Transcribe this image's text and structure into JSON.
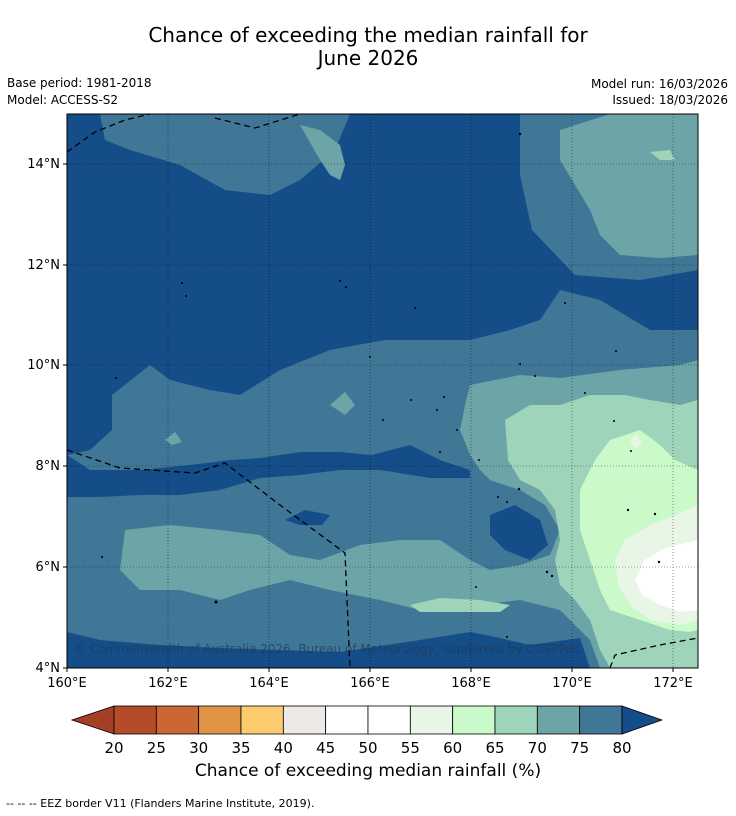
{
  "title_line1": "Chance of exceeding the median rainfall for",
  "title_line2": "June 2026",
  "base_period": "Base period: 1981-2018",
  "model": "Model: ACCESS-S2",
  "model_run": "Model run: 16/03/2026",
  "issued": "Issued: 18/03/2026",
  "copyright": "© Commonwealth of Australia 2026, Bureau of Meteorology, supported by COSPPac",
  "x_ticks": [
    "160°E",
    "162°E",
    "164°E",
    "166°E",
    "168°E",
    "170°E",
    "172°E"
  ],
  "y_ticks": [
    "14°N",
    "12°N",
    "10°N",
    "8°N",
    "6°N",
    "4°N"
  ],
  "colorbar": {
    "label": "Chance of exceeding median rainfall (%)",
    "ticks": [
      "20",
      "25",
      "30",
      "35",
      "40",
      "45",
      "50",
      "55",
      "60",
      "65",
      "70",
      "75",
      "80"
    ],
    "colors": {
      "below_20": "#A23F25",
      "20-25": "#B34C27",
      "25-30": "#CB6634",
      "30-35": "#E09546",
      "35-40": "#FCCB6E",
      "40-45": "#EDE9E4",
      "45-50": "#FFFFFF",
      "50-55": "#FFFFFF",
      "55-60": "#E8F6E6",
      "60-65": "#CAFACA",
      "65-70": "#9ED4B9",
      "70-75": "#6CA4A7",
      "75-80": "#407797",
      "above_80": "#154D89"
    }
  },
  "footnote": "--  --  -- EEZ border V11 (Flanders Marine Institute, 2019)."
}
